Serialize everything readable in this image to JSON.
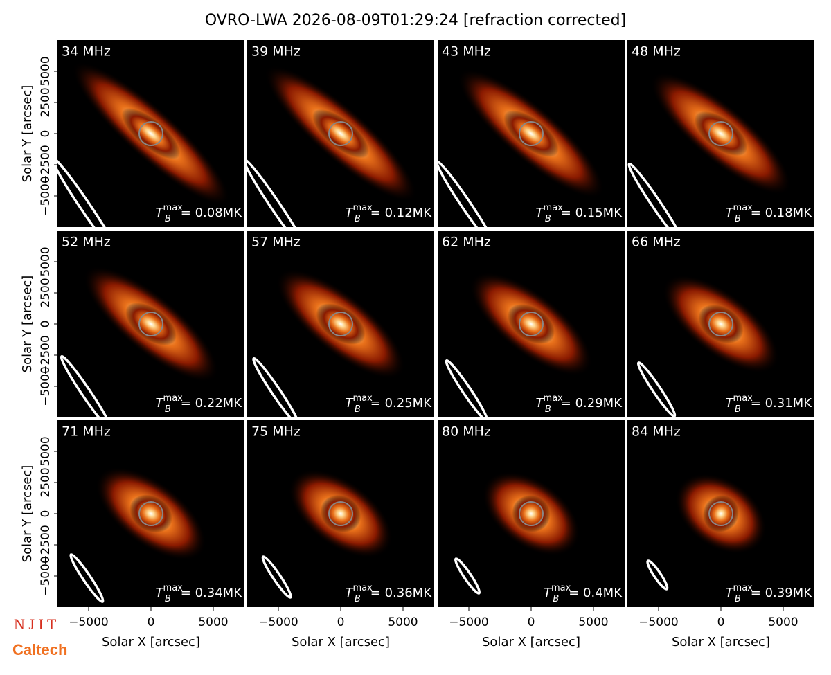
{
  "chart_data": {
    "type": "image-grid",
    "title": "OVRO-LWA 2026-08-09T01:29:24 [refraction corrected]",
    "xlabel": "Solar X [arcsec]",
    "ylabel": "Solar Y [arcsec]",
    "xlim": [
      -7500,
      7500
    ],
    "ylim": [
      -7500,
      7500
    ],
    "xticks": [
      {
        "value": -5000,
        "label": "−5000"
      },
      0,
      5000
    ],
    "yticks": [
      {
        "value": -5000,
        "label": "−5000"
      },
      {
        "value": -2500,
        "label": "−2500"
      },
      0,
      2500,
      5000
    ],
    "tb_symbol": "T",
    "tb_sub": "B",
    "tb_sup": "max",
    "panels": [
      {
        "label": "34 MHz",
        "tb": "= 0.08MK"
      },
      {
        "label": "39 MHz",
        "tb": "= 0.12MK"
      },
      {
        "label": "43 MHz",
        "tb": "= 0.15MK"
      },
      {
        "label": "48 MHz",
        "tb": "= 0.18MK"
      },
      {
        "label": "52 MHz",
        "tb": "= 0.22MK"
      },
      {
        "label": "57 MHz",
        "tb": "= 0.25MK"
      },
      {
        "label": "62 MHz",
        "tb": "= 0.29MK"
      },
      {
        "label": "66 MHz",
        "tb": "= 0.31MK"
      },
      {
        "label": "71 MHz",
        "tb": "= 0.34MK"
      },
      {
        "label": "75 MHz",
        "tb": "= 0.36MK"
      },
      {
        "label": "80 MHz",
        "tb": "= 0.4MK"
      },
      {
        "label": "84 MHz",
        "tb": "= 0.39MK"
      }
    ]
  },
  "logos": [
    "N J I T",
    "Caltech"
  ]
}
